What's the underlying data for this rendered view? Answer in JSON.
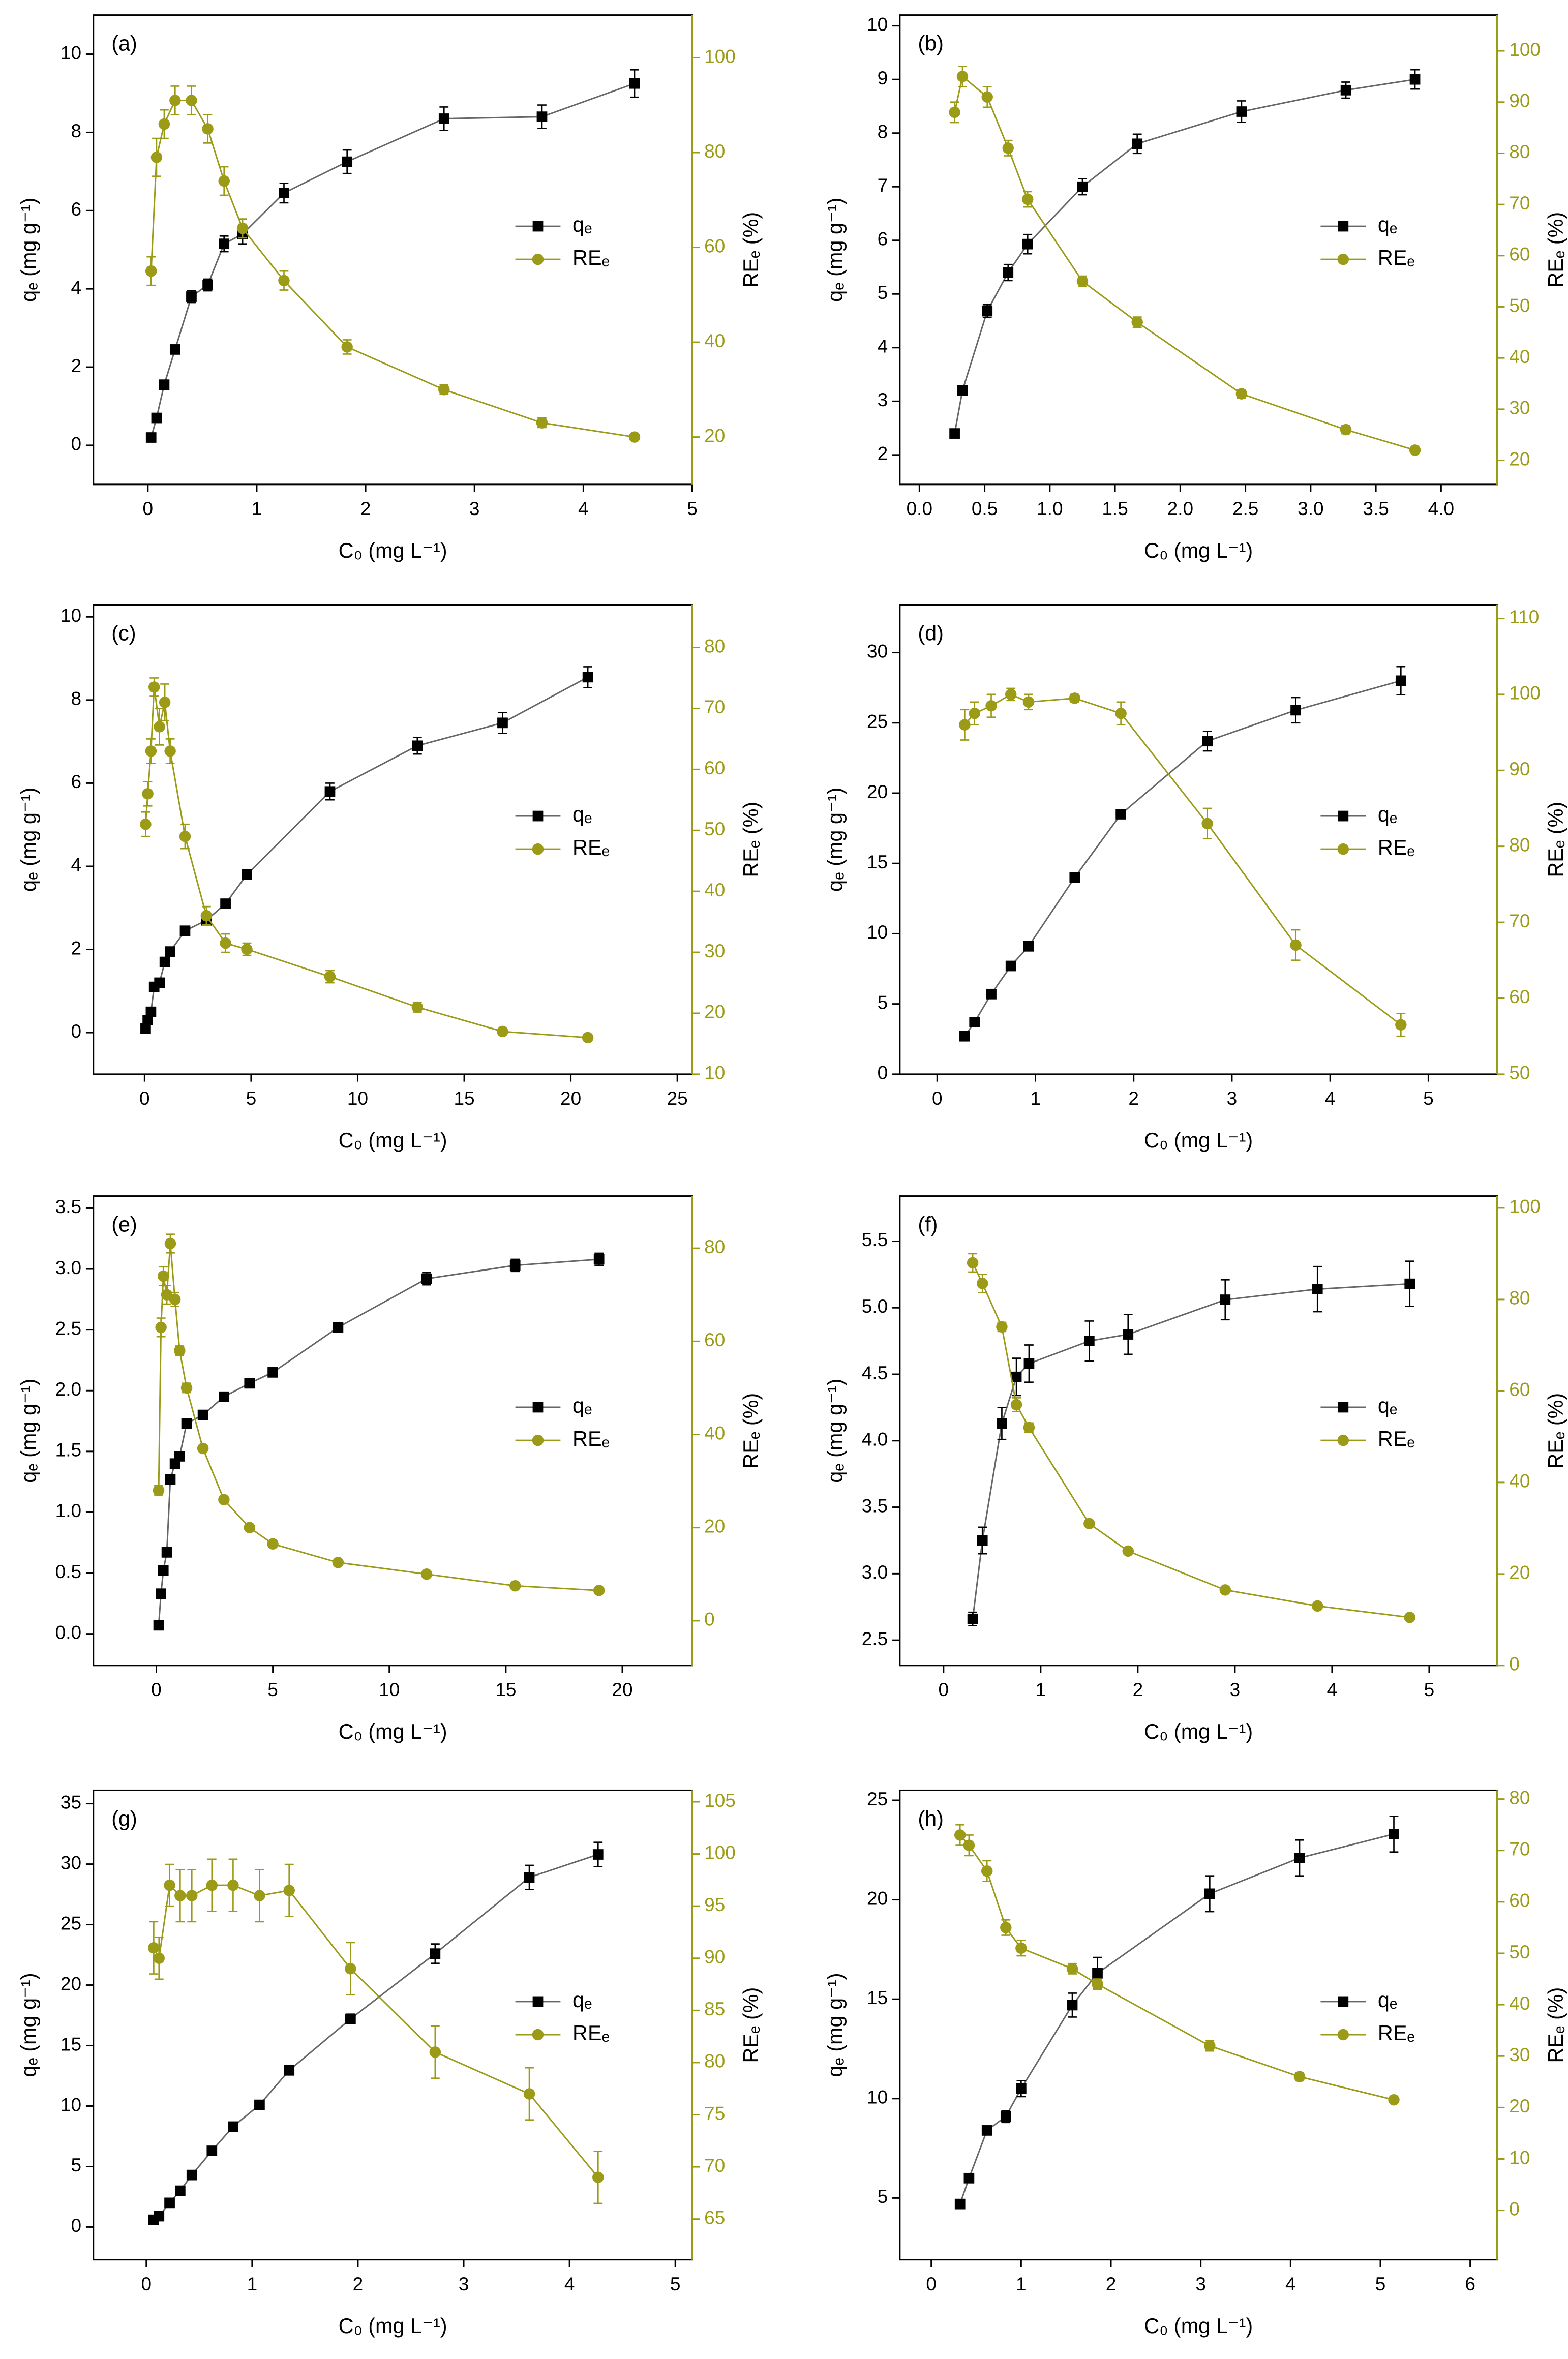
{
  "chart_data": [
    {
      "type": "line",
      "title": "(a)",
      "x_label": "C₀ (mg L⁻¹)",
      "y_label": "qₑ (mg g⁻¹)",
      "y2_label": "REₑ (%)",
      "legend": "center right",
      "x": [
        0.03,
        0.08,
        0.15,
        0.25,
        0.4,
        0.55,
        0.7,
        0.87,
        1.25,
        1.83,
        2.72,
        3.62,
        4.47
      ],
      "series": [
        {
          "name": "qₑ",
          "color": "#000000",
          "marker": "square",
          "values": [
            0.2,
            0.7,
            1.55,
            2.45,
            3.8,
            4.1,
            5.15,
            5.4,
            6.45,
            7.25,
            8.35,
            8.4,
            9.25
          ],
          "errors": [
            0.1,
            0.1,
            0.1,
            0.1,
            0.15,
            0.15,
            0.2,
            0.25,
            0.25,
            0.3,
            0.3,
            0.3,
            0.35
          ]
        },
        {
          "name": "REₑ",
          "color": "#9b9b17",
          "marker": "circle",
          "axis": "y2",
          "values": [
            55,
            79,
            86,
            91,
            91,
            85,
            74,
            64,
            53,
            39,
            30,
            23,
            20
          ],
          "errors": [
            3,
            4,
            3,
            3,
            3,
            3,
            3,
            2,
            2,
            1.5,
            1,
            1,
            0.5
          ]
        }
      ],
      "xlim": [
        -0.5,
        5
      ],
      "ylim": [
        -1,
        11
      ],
      "y2lim": [
        10,
        109
      ],
      "xticks": [
        0,
        1,
        2,
        3,
        4,
        5
      ],
      "yticks": [
        0,
        2,
        4,
        6,
        8,
        10
      ],
      "y2ticks": [
        20,
        40,
        60,
        80,
        100
      ]
    },
    {
      "type": "line",
      "title": "(b)",
      "x_label": "C₀ (mg L⁻¹)",
      "y_label": "qₑ (mg g⁻¹)",
      "y2_label": "REₑ (%)",
      "legend": "center right",
      "x": [
        0.27,
        0.33,
        0.52,
        0.68,
        0.83,
        1.25,
        1.67,
        2.47,
        3.27,
        3.8
      ],
      "series": [
        {
          "name": "qₑ",
          "color": "#000000",
          "marker": "square",
          "values": [
            2.4,
            3.2,
            4.68,
            5.4,
            5.93,
            7.0,
            7.8,
            8.4,
            8.8,
            9.0
          ],
          "errors": [
            0.05,
            0.08,
            0.12,
            0.15,
            0.18,
            0.15,
            0.18,
            0.2,
            0.15,
            0.18
          ]
        },
        {
          "name": "REₑ",
          "color": "#9b9b17",
          "marker": "circle",
          "axis": "y2",
          "values": [
            88,
            95,
            91,
            81,
            71,
            55,
            47,
            33,
            26,
            22
          ],
          "errors": [
            2,
            2,
            2,
            1.5,
            1.5,
            1,
            1,
            0.8,
            0.8,
            0.5
          ]
        }
      ],
      "xlim": [
        -0.15,
        4.43
      ],
      "ylim": [
        1.45,
        10.2
      ],
      "y2lim": [
        15.3,
        107
      ],
      "xticks": [
        {
          "value": 0,
          "label": "0.0"
        },
        0.5,
        {
          "value": 1,
          "label": "1.0"
        },
        1.5,
        {
          "value": 2,
          "label": "2.0"
        },
        2.5,
        {
          "value": 3,
          "label": "3.0"
        },
        3.5,
        {
          "value": 4,
          "label": "4.0"
        }
      ],
      "yticks": [
        2,
        3,
        4,
        5,
        6,
        7,
        8,
        9,
        10
      ],
      "y2ticks": [
        20,
        30,
        40,
        50,
        60,
        70,
        80,
        90,
        100
      ]
    },
    {
      "type": "line",
      "title": "(c)",
      "x_label": "C₀ (mg L⁻¹)",
      "y_label": "qₑ (mg g⁻¹)",
      "y2_label": "REₑ (%)",
      "legend": "center right",
      "x": [
        0.05,
        0.15,
        0.3,
        0.45,
        0.7,
        0.95,
        1.2,
        1.9,
        2.9,
        3.8,
        4.8,
        8.7,
        12.8,
        16.8,
        20.8
      ],
      "series": [
        {
          "name": "qₑ",
          "color": "#000000",
          "marker": "square",
          "values": [
            0.1,
            0.3,
            0.5,
            1.1,
            1.2,
            1.7,
            1.95,
            2.45,
            2.7,
            3.1,
            3.8,
            5.8,
            6.9,
            7.45,
            8.55
          ],
          "errors": [
            0.05,
            0.05,
            0.05,
            0.05,
            0.05,
            0.05,
            0.05,
            0.05,
            0.1,
            0.1,
            0.1,
            0.2,
            0.2,
            0.25,
            0.25
          ]
        },
        {
          "name": "REₑ",
          "color": "#9b9b17",
          "marker": "circle",
          "axis": "y2",
          "values": [
            51,
            56,
            63,
            73.5,
            67,
            71,
            63,
            49,
            36,
            31.5,
            30.5,
            26,
            21,
            17,
            16
          ],
          "errors": [
            2,
            2,
            2,
            1.5,
            3,
            3,
            2,
            2,
            1.5,
            1.5,
            1,
            1,
            0.8,
            0.5,
            0.5
          ]
        }
      ],
      "xlim": [
        -2.4,
        25.7
      ],
      "ylim": [
        -1,
        10.29
      ],
      "y2lim": [
        10,
        87
      ],
      "xticks": [
        0,
        5,
        10,
        15,
        20,
        25
      ],
      "yticks": [
        0,
        2,
        4,
        6,
        8,
        10
      ],
      "y2ticks": [
        10,
        20,
        30,
        40,
        50,
        60,
        70,
        80
      ]
    },
    {
      "type": "line",
      "title": "(d)",
      "x_label": "C₀ (mg L⁻¹)",
      "y_label": "qₑ (mg g⁻¹)",
      "y2_label": "REₑ (%)",
      "legend": "center right",
      "x": [
        0.28,
        0.38,
        0.55,
        0.75,
        0.93,
        1.4,
        1.87,
        2.75,
        3.65,
        4.72
      ],
      "series": [
        {
          "name": "qₑ",
          "color": "#000000",
          "marker": "square",
          "values": [
            2.7,
            3.7,
            5.7,
            7.7,
            9.1,
            14,
            18.5,
            23.7,
            25.9,
            28
          ],
          "errors": [
            0.1,
            0.1,
            0.1,
            0.1,
            0.1,
            0.1,
            0.3,
            0.7,
            0.9,
            1.0
          ]
        },
        {
          "name": "REₑ",
          "color": "#9b9b17",
          "marker": "circle",
          "axis": "y2",
          "values": [
            96,
            97.5,
            98.5,
            100,
            99,
            99.5,
            97.5,
            83,
            67,
            56.5
          ],
          "errors": [
            2,
            1.5,
            1.5,
            0.8,
            1,
            0.5,
            1.5,
            2,
            2,
            1.5
          ]
        }
      ],
      "xlim": [
        -0.38,
        5.7
      ],
      "ylim": [
        0,
        33.4
      ],
      "y2lim": [
        50,
        111.8
      ],
      "xticks": [
        0,
        1,
        2,
        3,
        4,
        5
      ],
      "yticks": [
        0,
        5,
        10,
        15,
        20,
        25,
        30
      ],
      "y2ticks": [
        50,
        60,
        70,
        80,
        90,
        100,
        110
      ]
    },
    {
      "type": "line",
      "title": "(e)",
      "x_label": "C₀ (mg L⁻¹)",
      "y_label": "qₑ (mg g⁻¹)",
      "y2_label": "REₑ (%)",
      "legend": "center right",
      "x": [
        0.1,
        0.2,
        0.3,
        0.45,
        0.6,
        0.8,
        1.0,
        1.3,
        2.0,
        2.9,
        4.0,
        5.0,
        7.8,
        11.6,
        15.4,
        19.0
      ],
      "series": [
        {
          "name": "qₑ",
          "color": "#000000",
          "marker": "square",
          "values": [
            0.07,
            0.33,
            0.52,
            0.67,
            1.27,
            1.4,
            1.46,
            1.73,
            1.8,
            1.95,
            2.06,
            2.15,
            2.52,
            2.92,
            3.03,
            3.08
          ],
          "errors": [
            0.01,
            0.01,
            0.02,
            0.02,
            0.02,
            0.03,
            0.03,
            0.03,
            0.03,
            0.03,
            0.03,
            0.03,
            0.04,
            0.05,
            0.05,
            0.05
          ]
        },
        {
          "name": "REₑ",
          "color": "#9b9b17",
          "marker": "circle",
          "axis": "y2",
          "values": [
            28,
            63,
            74,
            70,
            81,
            69,
            58,
            50,
            37,
            26,
            20,
            16.5,
            12.5,
            10,
            7.5,
            6.5
          ],
          "errors": [
            1,
            2,
            2,
            2,
            2,
            1.5,
            1,
            1,
            0.5,
            0.5,
            0.5,
            0.5,
            0.5,
            0.5,
            0.5,
            0.5
          ]
        }
      ],
      "xlim": [
        -2.7,
        23
      ],
      "ylim": [
        -0.26,
        3.6
      ],
      "y2lim": [
        -9.6,
        91.2
      ],
      "xticks": [
        0,
        5,
        10,
        15,
        20
      ],
      "yticks": [
        {
          "value": 0,
          "label": "0.0"
        },
        0.5,
        {
          "value": 1,
          "label": "1.0"
        },
        1.5,
        {
          "value": 2,
          "label": "2.0"
        },
        2.5,
        {
          "value": 3,
          "label": "3.0"
        },
        3.5
      ],
      "y2ticks": [
        0,
        20,
        40,
        60,
        80
      ]
    },
    {
      "type": "line",
      "title": "(f)",
      "x_label": "C₀ (mg L⁻¹)",
      "y_label": "qₑ (mg g⁻¹)",
      "y2_label": "REₑ (%)",
      "legend": "center right",
      "x": [
        0.3,
        0.4,
        0.6,
        0.75,
        0.88,
        1.5,
        1.9,
        2.9,
        3.85,
        4.8
      ],
      "series": [
        {
          "name": "qₑ",
          "color": "#000000",
          "marker": "square",
          "values": [
            2.66,
            3.25,
            4.13,
            4.48,
            4.58,
            4.75,
            4.8,
            5.06,
            5.14,
            5.18
          ],
          "errors": [
            0.05,
            0.1,
            0.12,
            0.14,
            0.14,
            0.15,
            0.15,
            0.15,
            0.17,
            0.17
          ]
        },
        {
          "name": "REₑ",
          "color": "#9b9b17",
          "marker": "circle",
          "axis": "y2",
          "values": [
            88,
            83.5,
            74,
            57,
            52,
            31,
            25,
            16.5,
            13,
            10.5
          ],
          "errors": [
            2,
            2,
            1,
            1.5,
            1,
            0.5,
            0.5,
            0.5,
            0.5,
            0.5
          ]
        }
      ],
      "xlim": [
        -0.45,
        5.7
      ],
      "ylim": [
        2.31,
        5.84
      ],
      "y2lim": [
        0,
        102.6
      ],
      "xticks": [
        0,
        1,
        2,
        3,
        4,
        5
      ],
      "yticks": [
        2.5,
        {
          "value": 3,
          "label": "3.0"
        },
        3.5,
        {
          "value": 4,
          "label": "4.0"
        },
        4.5,
        {
          "value": 5,
          "label": "5.0"
        },
        5.5
      ],
      "y2ticks": [
        0,
        20,
        40,
        60,
        80,
        100
      ]
    },
    {
      "type": "line",
      "title": "(g)",
      "x_label": "C₀ (mg L⁻¹)",
      "y_label": "qₑ (mg g⁻¹)",
      "y2_label": "REₑ (%)",
      "legend": "center right",
      "x": [
        0.07,
        0.12,
        0.22,
        0.32,
        0.43,
        0.62,
        0.82,
        1.07,
        1.35,
        1.93,
        2.73,
        3.62,
        4.27
      ],
      "series": [
        {
          "name": "qₑ",
          "color": "#000000",
          "marker": "square",
          "values": [
            0.6,
            0.9,
            2.0,
            3.0,
            4.3,
            6.3,
            8.3,
            10.1,
            12.95,
            17.2,
            22.6,
            28.9,
            30.8
          ],
          "errors": [
            0.1,
            0.1,
            0.1,
            0.1,
            0.1,
            0.1,
            0.1,
            0.1,
            0.1,
            0.4,
            0.8,
            1.0,
            1.0
          ]
        },
        {
          "name": "REₑ",
          "color": "#9b9b17",
          "marker": "circle",
          "axis": "y2",
          "values": [
            91,
            90,
            97,
            96,
            96,
            97,
            97,
            96,
            96.5,
            89,
            81,
            77,
            69
          ],
          "errors": [
            2.5,
            2,
            2,
            2.5,
            2.5,
            2.5,
            2.5,
            2.5,
            2.5,
            2.5,
            2.5,
            2.5,
            2.5
          ]
        }
      ],
      "xlim": [
        -0.5,
        5.16
      ],
      "ylim": [
        -2.7,
        36.1
      ],
      "y2lim": [
        61.1,
        106.1
      ],
      "xticks": [
        0,
        1,
        2,
        3,
        4,
        5
      ],
      "yticks": [
        0,
        5,
        10,
        15,
        20,
        25,
        30,
        35
      ],
      "y2ticks": [
        65,
        70,
        75,
        80,
        85,
        90,
        95,
        100,
        105
      ]
    },
    {
      "type": "line",
      "title": "(h)",
      "x_label": "C₀ (mg L⁻¹)",
      "y_label": "qₑ (mg g⁻¹)",
      "y2_label": "REₑ (%)",
      "legend": "center right",
      "x": [
        0.32,
        0.42,
        0.62,
        0.83,
        1.0,
        1.57,
        1.85,
        3.1,
        4.1,
        5.15
      ],
      "series": [
        {
          "name": "qₑ",
          "color": "#000000",
          "marker": "square",
          "values": [
            4.7,
            6.0,
            8.4,
            9.1,
            10.5,
            14.7,
            16.3,
            20.3,
            22.1,
            23.3
          ],
          "errors": [
            0.1,
            0.1,
            0.2,
            0.3,
            0.4,
            0.6,
            0.8,
            0.9,
            0.9,
            0.9
          ]
        },
        {
          "name": "REₑ",
          "color": "#9b9b17",
          "marker": "circle",
          "axis": "y2",
          "values": [
            73,
            71,
            66,
            55,
            51,
            47,
            44,
            32,
            26,
            21.5
          ],
          "errors": [
            2,
            2,
            2,
            1.5,
            1.5,
            1,
            1,
            1,
            0.8,
            0.5
          ]
        }
      ],
      "xlim": [
        -0.35,
        6.3
      ],
      "ylim": [
        1.9,
        25.5
      ],
      "y2lim": [
        -9.6,
        81.7
      ],
      "xticks": [
        0,
        1,
        2,
        3,
        4,
        5,
        6
      ],
      "yticks": [
        5,
        10,
        15,
        20,
        25
      ],
      "y2ticks": [
        0,
        10,
        20,
        30,
        40,
        50,
        60,
        70,
        80
      ]
    }
  ]
}
